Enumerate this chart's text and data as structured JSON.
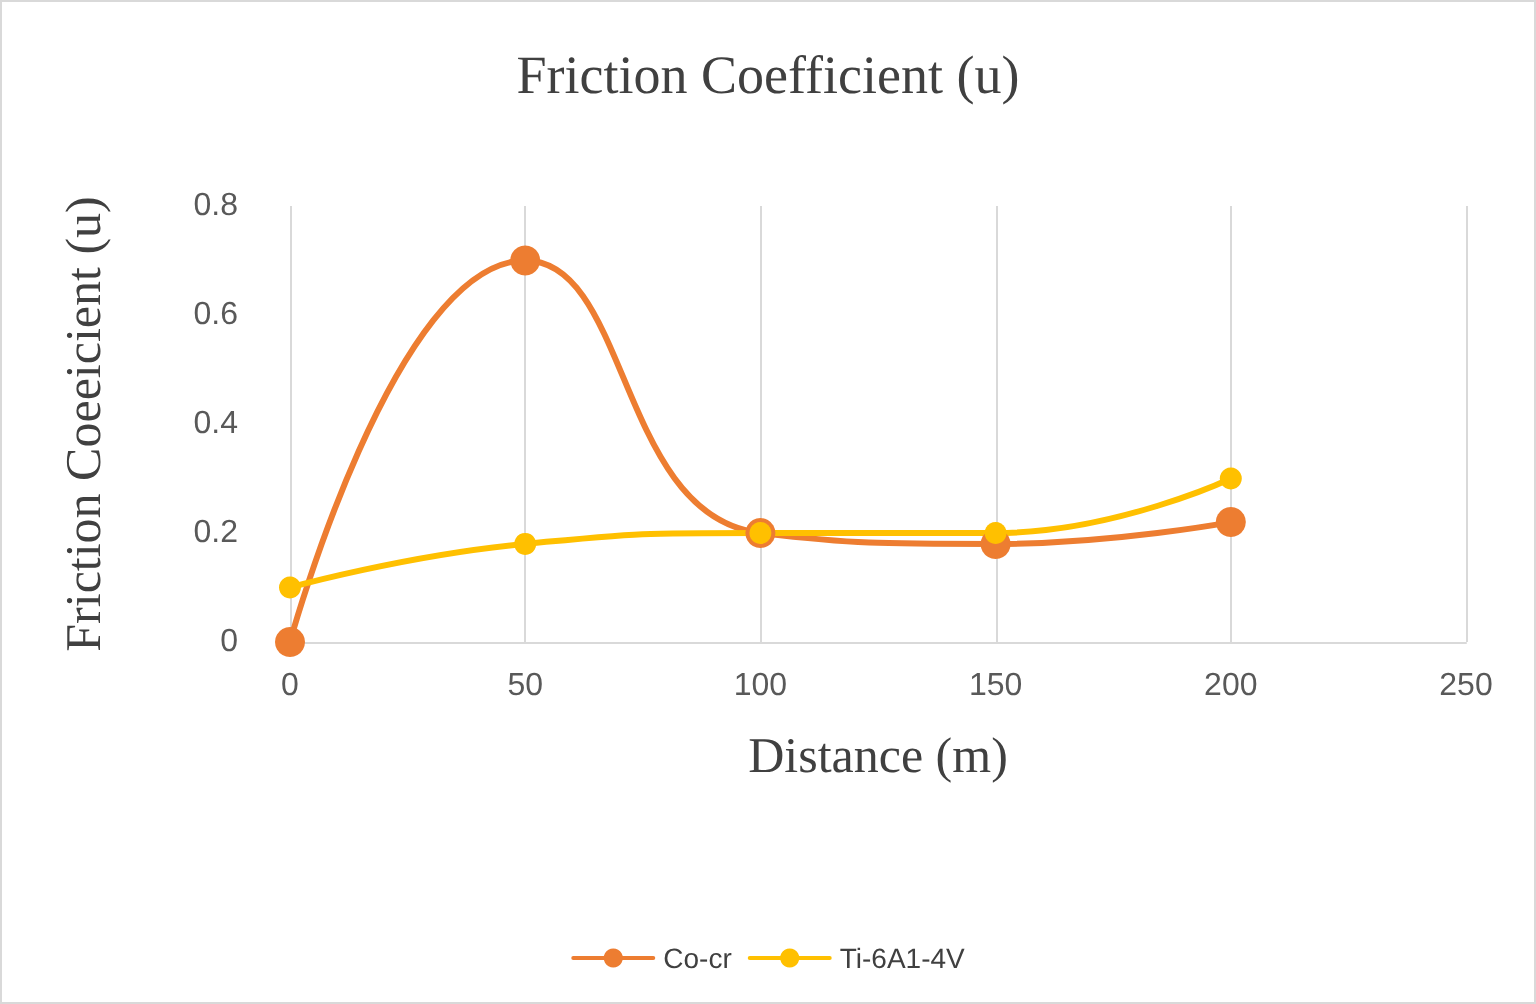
{
  "chart_data": {
    "type": "line",
    "title": "Friction Coefficient (u)",
    "xlabel": "Distance (m)",
    "ylabel": "Friction Coeeicient (u)",
    "x": [
      0,
      50,
      100,
      150,
      200
    ],
    "series": [
      {
        "name": "Co-cr",
        "color": "#ed7d31",
        "values": [
          0,
          0.7,
          0.2,
          0.18,
          0.22
        ]
      },
      {
        "name": "Ti-6A1-4V",
        "color": "#ffc000",
        "values": [
          0.1,
          0.18,
          0.2,
          0.2,
          0.3
        ]
      }
    ],
    "xlim": [
      0,
      250
    ],
    "xticks": [
      0,
      50,
      100,
      150,
      200,
      250
    ],
    "ylim": [
      0,
      0.8
    ],
    "yticks": [
      0,
      0.2,
      0.4,
      0.6,
      0.8
    ],
    "grid": "x",
    "legend": "bottom",
    "marker": "circle",
    "line_style": "solid"
  }
}
